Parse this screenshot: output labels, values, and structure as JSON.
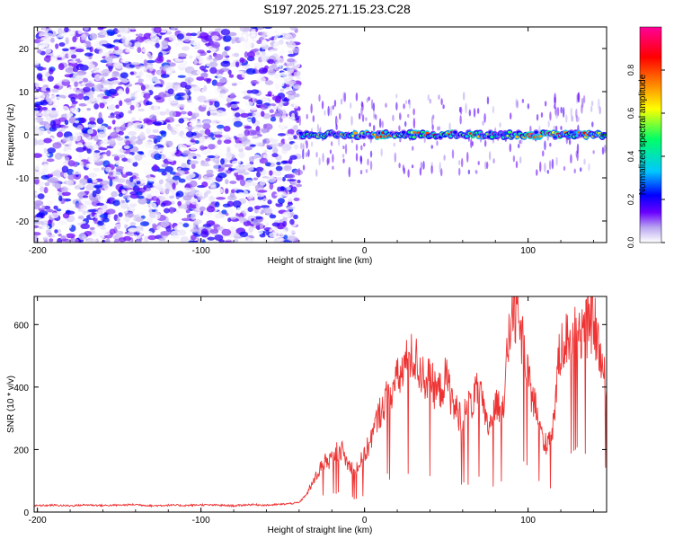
{
  "page": {
    "title": "S197.2025.271.15.23.C28"
  },
  "chart_data": [
    {
      "type": "heatmap",
      "title": "S197.2025.271.15.23.C28",
      "xlabel": "Height of straight line (km)",
      "ylabel": "Frequency (Hz)",
      "xlim": [
        -202,
        148
      ],
      "ylim": [
        -25,
        25
      ],
      "xticks": [
        -200,
        -100,
        0,
        100
      ],
      "yticks": [
        20,
        10,
        0,
        -10,
        -20
      ],
      "colorbar": {
        "label": "Normalized spectral amplitude",
        "range": [
          0,
          1
        ],
        "ticks": [
          0.0,
          0.2,
          0.4,
          0.6,
          0.8
        ],
        "colors": [
          "#ffffff",
          "#b9a6f0",
          "#6a00ff",
          "#0000ff",
          "#00c8ff",
          "#00ff66",
          "#ffff00",
          "#ff8000",
          "#ff0000",
          "#ff0099"
        ]
      },
      "regions": [
        {
          "name": "noise",
          "x_range": [
            -202,
            -40
          ],
          "freq_range": [
            -25,
            25
          ],
          "amplitude": [
            0.0,
            0.25
          ]
        },
        {
          "name": "signal",
          "x_range": [
            -40,
            148
          ],
          "center_frequency": 0,
          "amplitude": [
            0.2,
            1.0
          ]
        }
      ]
    },
    {
      "type": "line",
      "xlabel": "Height of straight line (km)",
      "ylabel": "SNR (10 * v/v)",
      "xlim": [
        -202,
        148
      ],
      "ylim": [
        0,
        690
      ],
      "xticks": [
        -200,
        -100,
        0,
        100
      ],
      "yticks": [
        0,
        200,
        400,
        600
      ],
      "color": "#ee3333",
      "series": [
        {
          "name": "SNR",
          "x": [
            -202,
            -190,
            -180,
            -170,
            -160,
            -150,
            -140,
            -130,
            -120,
            -110,
            -100,
            -90,
            -80,
            -70,
            -60,
            -50,
            -40,
            -35,
            -30,
            -25,
            -20,
            -15,
            -10,
            -5,
            0,
            5,
            10,
            15,
            20,
            25,
            30,
            35,
            40,
            45,
            50,
            55,
            60,
            65,
            70,
            75,
            80,
            85,
            90,
            95,
            100,
            105,
            110,
            115,
            120,
            125,
            130,
            135,
            140,
            145,
            148
          ],
          "y": [
            20,
            22,
            20,
            23,
            21,
            22,
            24,
            20,
            22,
            21,
            23,
            22,
            20,
            24,
            22,
            25,
            30,
            60,
            110,
            160,
            170,
            210,
            150,
            140,
            180,
            250,
            330,
            380,
            420,
            470,
            500,
            440,
            420,
            380,
            430,
            330,
            300,
            350,
            390,
            270,
            330,
            360,
            650,
            600,
            420,
            330,
            210,
            270,
            540,
            560,
            600,
            580,
            620,
            470,
            390
          ]
        }
      ]
    }
  ]
}
